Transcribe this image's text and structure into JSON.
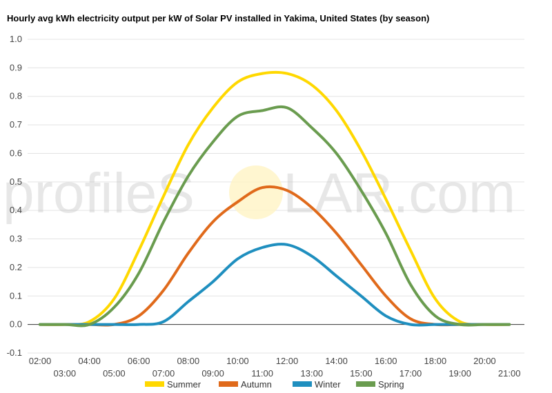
{
  "chart_data": {
    "type": "line",
    "title": "Hourly avg kWh electricity output per kW of Solar PV installed in Yakima, United States (by season)",
    "xlabel": "",
    "ylabel": "",
    "ylim": [
      -0.1,
      1.0
    ],
    "yticks": [
      "-0.1",
      "0.0",
      "0.1",
      "0.2",
      "0.3",
      "0.4",
      "0.5",
      "0.6",
      "0.7",
      "0.8",
      "0.9",
      "1.0"
    ],
    "x": [
      "02:00",
      "03:00",
      "04:00",
      "05:00",
      "06:00",
      "07:00",
      "08:00",
      "09:00",
      "10:00",
      "11:00",
      "12:00",
      "13:00",
      "14:00",
      "15:00",
      "16:00",
      "17:00",
      "18:00",
      "19:00",
      "20:00",
      "21:00"
    ],
    "grid": true,
    "legend": "bottom",
    "series": [
      {
        "name": "Summer",
        "color": "#FFD800",
        "values": [
          0,
          0,
          0.01,
          0.09,
          0.26,
          0.45,
          0.63,
          0.76,
          0.85,
          0.88,
          0.88,
          0.84,
          0.75,
          0.61,
          0.44,
          0.26,
          0.09,
          0.01,
          0,
          0
        ]
      },
      {
        "name": "Autumn",
        "color": "#E06A1B",
        "values": [
          0,
          0,
          0,
          0,
          0.03,
          0.12,
          0.25,
          0.36,
          0.43,
          0.48,
          0.47,
          0.41,
          0.32,
          0.21,
          0.1,
          0.02,
          0,
          0,
          0,
          0
        ]
      },
      {
        "name": "Winter",
        "color": "#1F8FBF",
        "values": [
          0,
          0,
          0,
          0,
          0,
          0.01,
          0.08,
          0.15,
          0.23,
          0.27,
          0.28,
          0.24,
          0.17,
          0.1,
          0.03,
          0,
          0,
          0,
          0,
          0
        ]
      },
      {
        "name": "Spring",
        "color": "#6A9C4F",
        "values": [
          0,
          0,
          0,
          0.06,
          0.18,
          0.36,
          0.52,
          0.64,
          0.73,
          0.75,
          0.76,
          0.69,
          0.6,
          0.47,
          0.32,
          0.14,
          0.03,
          0,
          0,
          0
        ]
      }
    ]
  },
  "watermark": {
    "prefix": "profileS",
    "suffix": "LAR.com"
  }
}
